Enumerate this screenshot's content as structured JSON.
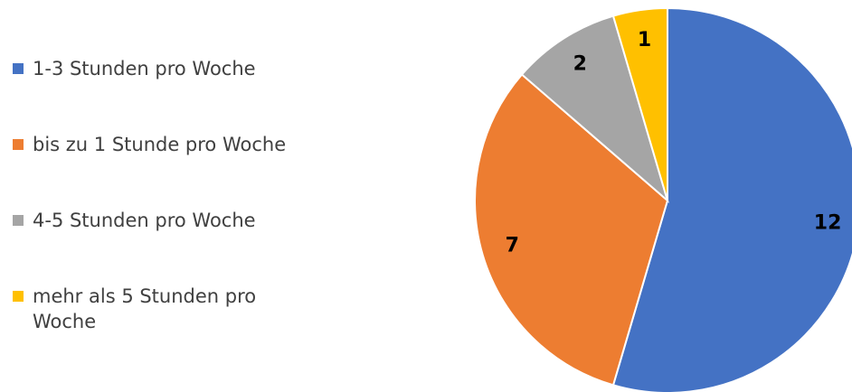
{
  "chart_data": {
    "type": "pie",
    "categories": [
      "1-3 Stunden pro Woche",
      "bis zu 1 Stunde pro Woche",
      "4-5 Stunden pro Woche",
      "mehr als 5 Stunden pro Woche"
    ],
    "values": [
      12,
      7,
      2,
      1
    ],
    "colors": [
      "#4472c4",
      "#ed7d31",
      "#a5a5a5",
      "#ffc000"
    ],
    "legend": "left"
  }
}
